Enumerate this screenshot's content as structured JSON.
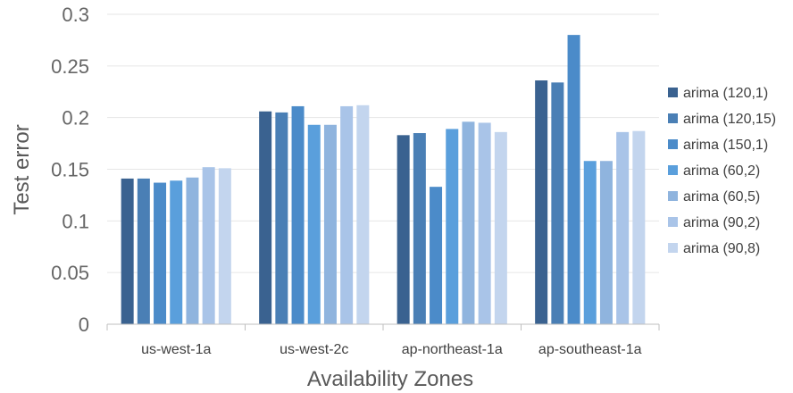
{
  "chart_data": {
    "type": "bar",
    "title": "",
    "xlabel": "Availability Zones",
    "ylabel": "Test error",
    "ylim": [
      0,
      0.3
    ],
    "yticks": [
      0,
      0.05,
      0.1,
      0.15,
      0.2,
      0.25,
      0.3
    ],
    "ytick_labels": [
      "0",
      "0.05",
      "0.1",
      "0.15",
      "0.2",
      "0.25",
      "0.3"
    ],
    "grid": true,
    "legend_position": "right",
    "categories": [
      "us-west-1a",
      "us-west-2c",
      "ap-northeast-1a",
      "ap-southeast-1a"
    ],
    "series": [
      {
        "name": "arima (120,1)",
        "color": "#3a6290",
        "values": [
          0.141,
          0.206,
          0.183,
          0.236
        ]
      },
      {
        "name": "arima (120,15)",
        "color": "#4a7fb5",
        "values": [
          0.141,
          0.205,
          0.185,
          0.234
        ]
      },
      {
        "name": "arima (150,1)",
        "color": "#4b8bc9",
        "values": [
          0.137,
          0.211,
          0.133,
          0.28
        ]
      },
      {
        "name": "arima (60,2)",
        "color": "#5a9fdc",
        "values": [
          0.139,
          0.193,
          0.189,
          0.158
        ]
      },
      {
        "name": "arima (60,5)",
        "color": "#8fb4de",
        "values": [
          0.142,
          0.193,
          0.196,
          0.158
        ]
      },
      {
        "name": "arima (90,2)",
        "color": "#a9c4e8",
        "values": [
          0.152,
          0.211,
          0.195,
          0.186
        ]
      },
      {
        "name": "arima (90,8)",
        "color": "#c3d5ee",
        "values": [
          0.151,
          0.212,
          0.186,
          0.187
        ]
      }
    ]
  }
}
